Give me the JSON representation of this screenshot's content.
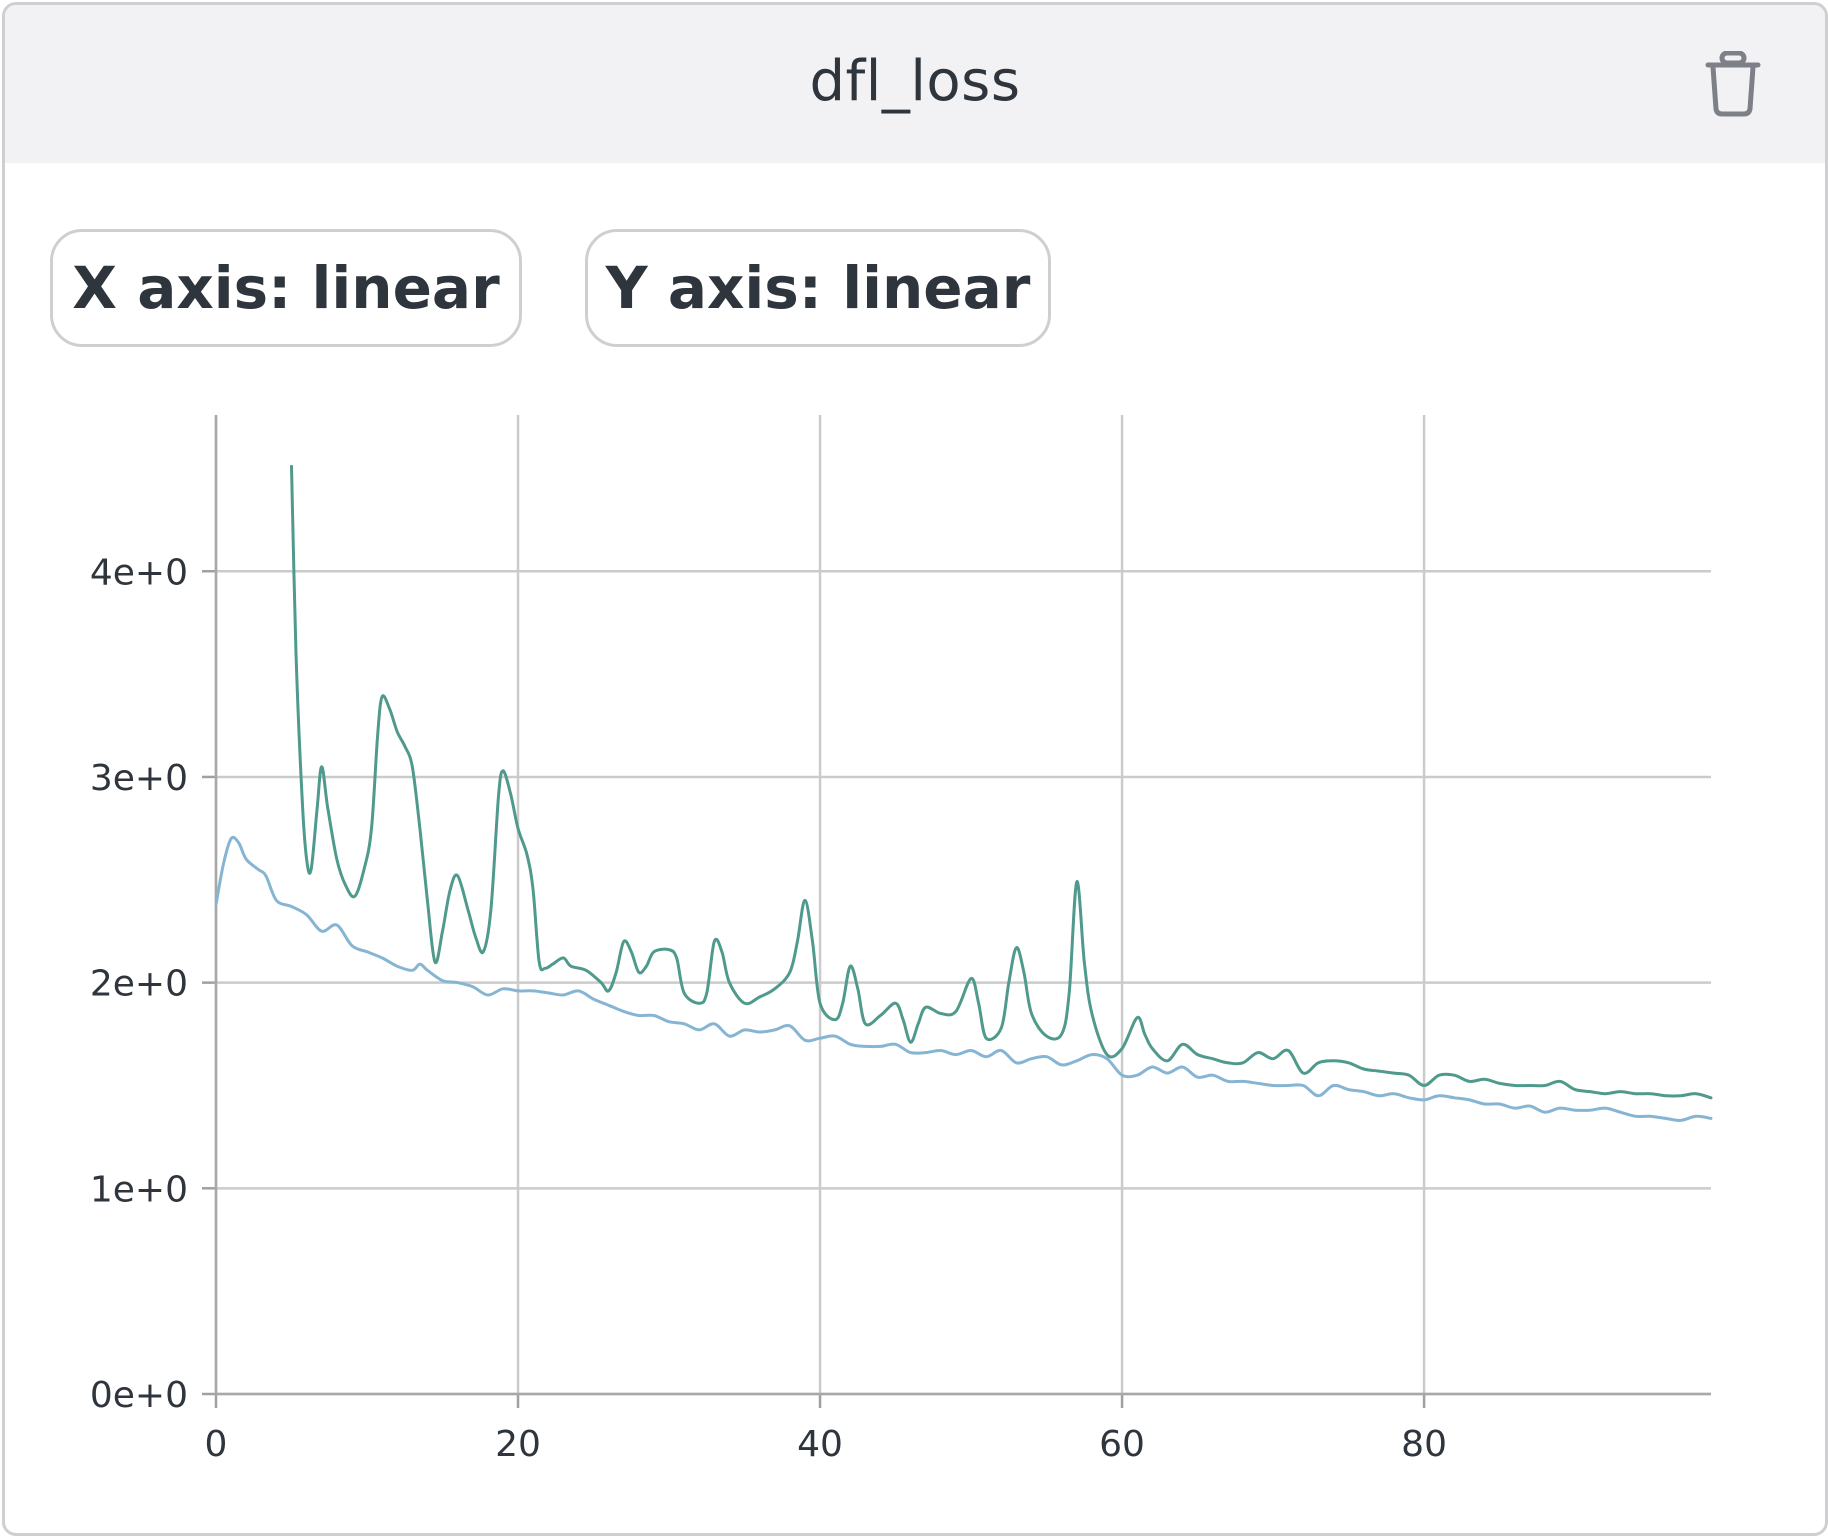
{
  "card": {
    "title": "dfl_loss",
    "delete_icon": "trash-icon"
  },
  "controls": {
    "x_scale_label": "X axis: linear",
    "y_scale_label": "Y axis: linear"
  },
  "colors": {
    "series_a": "#4f9a8c",
    "series_b": "#86b5d4",
    "grid": "#cbcbcb",
    "header_bg": "#f2f2f5"
  },
  "chart_data": {
    "type": "line",
    "title": "dfl_loss",
    "xlim": [
      0,
      99
    ],
    "ylim": [
      0,
      4.75
    ],
    "x_ticks": [
      0,
      20,
      40,
      60,
      80
    ],
    "x_tick_labels": [
      "0",
      "20",
      "40",
      "60",
      "80"
    ],
    "y_ticks": [
      0,
      1,
      2,
      3,
      4
    ],
    "y_tick_labels": [
      "0e+0",
      "1e+0",
      "2e+0",
      "3e+0",
      "4e+0"
    ],
    "grid": true,
    "series": [
      {
        "color": "#4f9a8c",
        "points": [
          [
            5,
            4.51
          ],
          [
            5.3,
            3.6
          ],
          [
            5.7,
            2.9
          ],
          [
            6,
            2.6
          ],
          [
            6.3,
            2.55
          ],
          [
            6.7,
            2.85
          ],
          [
            7,
            3.05
          ],
          [
            7.4,
            2.85
          ],
          [
            8,
            2.6
          ],
          [
            8.6,
            2.47
          ],
          [
            9.2,
            2.42
          ],
          [
            9.8,
            2.55
          ],
          [
            10.3,
            2.75
          ],
          [
            10.7,
            3.2
          ],
          [
            11,
            3.39
          ],
          [
            11.5,
            3.33
          ],
          [
            12,
            3.22
          ],
          [
            12.5,
            3.15
          ],
          [
            13,
            3.05
          ],
          [
            13.5,
            2.75
          ],
          [
            14,
            2.4
          ],
          [
            14.5,
            2.1
          ],
          [
            15,
            2.25
          ],
          [
            15.5,
            2.45
          ],
          [
            16,
            2.52
          ],
          [
            16.7,
            2.35
          ],
          [
            17.2,
            2.22
          ],
          [
            17.7,
            2.15
          ],
          [
            18.2,
            2.35
          ],
          [
            18.7,
            2.9
          ],
          [
            19,
            3.03
          ],
          [
            19.5,
            2.92
          ],
          [
            20,
            2.75
          ],
          [
            20.6,
            2.62
          ],
          [
            21,
            2.45
          ],
          [
            21.4,
            2.1
          ],
          [
            21.8,
            2.07
          ],
          [
            22.3,
            2.09
          ],
          [
            23,
            2.12
          ],
          [
            23.5,
            2.08
          ],
          [
            24.5,
            2.06
          ],
          [
            25.5,
            2.0
          ],
          [
            26,
            1.96
          ],
          [
            26.5,
            2.05
          ],
          [
            27,
            2.2
          ],
          [
            27.5,
            2.15
          ],
          [
            28,
            2.05
          ],
          [
            28.5,
            2.08
          ],
          [
            29,
            2.15
          ],
          [
            30,
            2.16
          ],
          [
            30.5,
            2.12
          ],
          [
            31,
            1.95
          ],
          [
            32,
            1.9
          ],
          [
            32.5,
            1.95
          ],
          [
            33,
            2.2
          ],
          [
            33.5,
            2.15
          ],
          [
            34,
            2.0
          ],
          [
            35,
            1.9
          ],
          [
            36,
            1.93
          ],
          [
            37,
            1.97
          ],
          [
            38,
            2.05
          ],
          [
            38.5,
            2.2
          ],
          [
            39,
            2.4
          ],
          [
            39.5,
            2.2
          ],
          [
            40,
            1.9
          ],
          [
            41,
            1.82
          ],
          [
            41.5,
            1.9
          ],
          [
            42,
            2.08
          ],
          [
            42.5,
            1.97
          ],
          [
            43,
            1.8
          ],
          [
            44,
            1.84
          ],
          [
            45,
            1.9
          ],
          [
            45.5,
            1.82
          ],
          [
            46,
            1.71
          ],
          [
            46.5,
            1.8
          ],
          [
            47,
            1.88
          ],
          [
            48,
            1.85
          ],
          [
            49,
            1.86
          ],
          [
            50,
            2.02
          ],
          [
            50.5,
            1.9
          ],
          [
            51,
            1.73
          ],
          [
            52,
            1.78
          ],
          [
            52.5,
            2.0
          ],
          [
            53,
            2.17
          ],
          [
            53.5,
            2.05
          ],
          [
            54,
            1.85
          ],
          [
            55,
            1.74
          ],
          [
            56,
            1.75
          ],
          [
            56.5,
            1.95
          ],
          [
            57,
            2.49
          ],
          [
            57.5,
            2.1
          ],
          [
            58,
            1.85
          ],
          [
            59,
            1.65
          ],
          [
            60,
            1.68
          ],
          [
            61,
            1.83
          ],
          [
            61.5,
            1.75
          ],
          [
            62,
            1.68
          ],
          [
            63,
            1.62
          ],
          [
            64,
            1.7
          ],
          [
            65,
            1.65
          ],
          [
            66,
            1.63
          ],
          [
            67,
            1.61
          ],
          [
            68,
            1.61
          ],
          [
            69,
            1.66
          ],
          [
            70,
            1.63
          ],
          [
            71,
            1.67
          ],
          [
            72,
            1.56
          ],
          [
            73,
            1.61
          ],
          [
            74,
            1.62
          ],
          [
            75,
            1.61
          ],
          [
            76,
            1.58
          ],
          [
            77,
            1.57
          ],
          [
            78,
            1.56
          ],
          [
            79,
            1.55
          ],
          [
            80,
            1.5
          ],
          [
            81,
            1.55
          ],
          [
            82,
            1.55
          ],
          [
            83,
            1.52
          ],
          [
            84,
            1.53
          ],
          [
            85,
            1.51
          ],
          [
            86,
            1.5
          ],
          [
            87,
            1.5
          ],
          [
            88,
            1.5
          ],
          [
            89,
            1.52
          ],
          [
            90,
            1.48
          ],
          [
            91,
            1.47
          ],
          [
            92,
            1.46
          ],
          [
            93,
            1.47
          ],
          [
            94,
            1.46
          ],
          [
            95,
            1.46
          ],
          [
            96,
            1.45
          ],
          [
            97,
            1.45
          ],
          [
            98,
            1.46
          ],
          [
            99,
            1.44
          ]
        ]
      },
      {
        "color": "#86b5d4",
        "points": [
          [
            0,
            2.38
          ],
          [
            0.5,
            2.58
          ],
          [
            1,
            2.7
          ],
          [
            1.5,
            2.68
          ],
          [
            2,
            2.6
          ],
          [
            2.8,
            2.55
          ],
          [
            3.3,
            2.52
          ],
          [
            4,
            2.4
          ],
          [
            5,
            2.37
          ],
          [
            6,
            2.33
          ],
          [
            7,
            2.25
          ],
          [
            8,
            2.28
          ],
          [
            9,
            2.18
          ],
          [
            10,
            2.15
          ],
          [
            11,
            2.12
          ],
          [
            12,
            2.08
          ],
          [
            13,
            2.06
          ],
          [
            13.5,
            2.09
          ],
          [
            14,
            2.06
          ],
          [
            15,
            2.01
          ],
          [
            16,
            2.0
          ],
          [
            17,
            1.98
          ],
          [
            18,
            1.94
          ],
          [
            19,
            1.97
          ],
          [
            20,
            1.96
          ],
          [
            21,
            1.96
          ],
          [
            22,
            1.95
          ],
          [
            23,
            1.94
          ],
          [
            24,
            1.96
          ],
          [
            25,
            1.92
          ],
          [
            26,
            1.89
          ],
          [
            27,
            1.86
          ],
          [
            28,
            1.84
          ],
          [
            29,
            1.84
          ],
          [
            30,
            1.81
          ],
          [
            31,
            1.8
          ],
          [
            32,
            1.77
          ],
          [
            33,
            1.8
          ],
          [
            34,
            1.74
          ],
          [
            35,
            1.77
          ],
          [
            36,
            1.76
          ],
          [
            37,
            1.77
          ],
          [
            38,
            1.79
          ],
          [
            39,
            1.72
          ],
          [
            40,
            1.73
          ],
          [
            41,
            1.74
          ],
          [
            42,
            1.7
          ],
          [
            43,
            1.69
          ],
          [
            44,
            1.69
          ],
          [
            45,
            1.7
          ],
          [
            46,
            1.66
          ],
          [
            47,
            1.66
          ],
          [
            48,
            1.67
          ],
          [
            49,
            1.65
          ],
          [
            50,
            1.67
          ],
          [
            51,
            1.64
          ],
          [
            52,
            1.67
          ],
          [
            53,
            1.61
          ],
          [
            54,
            1.63
          ],
          [
            55,
            1.64
          ],
          [
            56,
            1.6
          ],
          [
            57,
            1.62
          ],
          [
            58,
            1.65
          ],
          [
            59,
            1.63
          ],
          [
            60,
            1.55
          ],
          [
            61,
            1.55
          ],
          [
            62,
            1.59
          ],
          [
            63,
            1.56
          ],
          [
            64,
            1.59
          ],
          [
            65,
            1.54
          ],
          [
            66,
            1.55
          ],
          [
            67,
            1.52
          ],
          [
            68,
            1.52
          ],
          [
            69,
            1.51
          ],
          [
            70,
            1.5
          ],
          [
            71,
            1.5
          ],
          [
            72,
            1.5
          ],
          [
            73,
            1.45
          ],
          [
            74,
            1.5
          ],
          [
            75,
            1.48
          ],
          [
            76,
            1.47
          ],
          [
            77,
            1.45
          ],
          [
            78,
            1.46
          ],
          [
            79,
            1.44
          ],
          [
            80,
            1.43
          ],
          [
            81,
            1.45
          ],
          [
            82,
            1.44
          ],
          [
            83,
            1.43
          ],
          [
            84,
            1.41
          ],
          [
            85,
            1.41
          ],
          [
            86,
            1.39
          ],
          [
            87,
            1.4
          ],
          [
            88,
            1.37
          ],
          [
            89,
            1.39
          ],
          [
            90,
            1.38
          ],
          [
            91,
            1.38
          ],
          [
            92,
            1.39
          ],
          [
            93,
            1.37
          ],
          [
            94,
            1.35
          ],
          [
            95,
            1.35
          ],
          [
            96,
            1.34
          ],
          [
            97,
            1.33
          ],
          [
            98,
            1.35
          ],
          [
            99,
            1.34
          ]
        ]
      }
    ]
  }
}
